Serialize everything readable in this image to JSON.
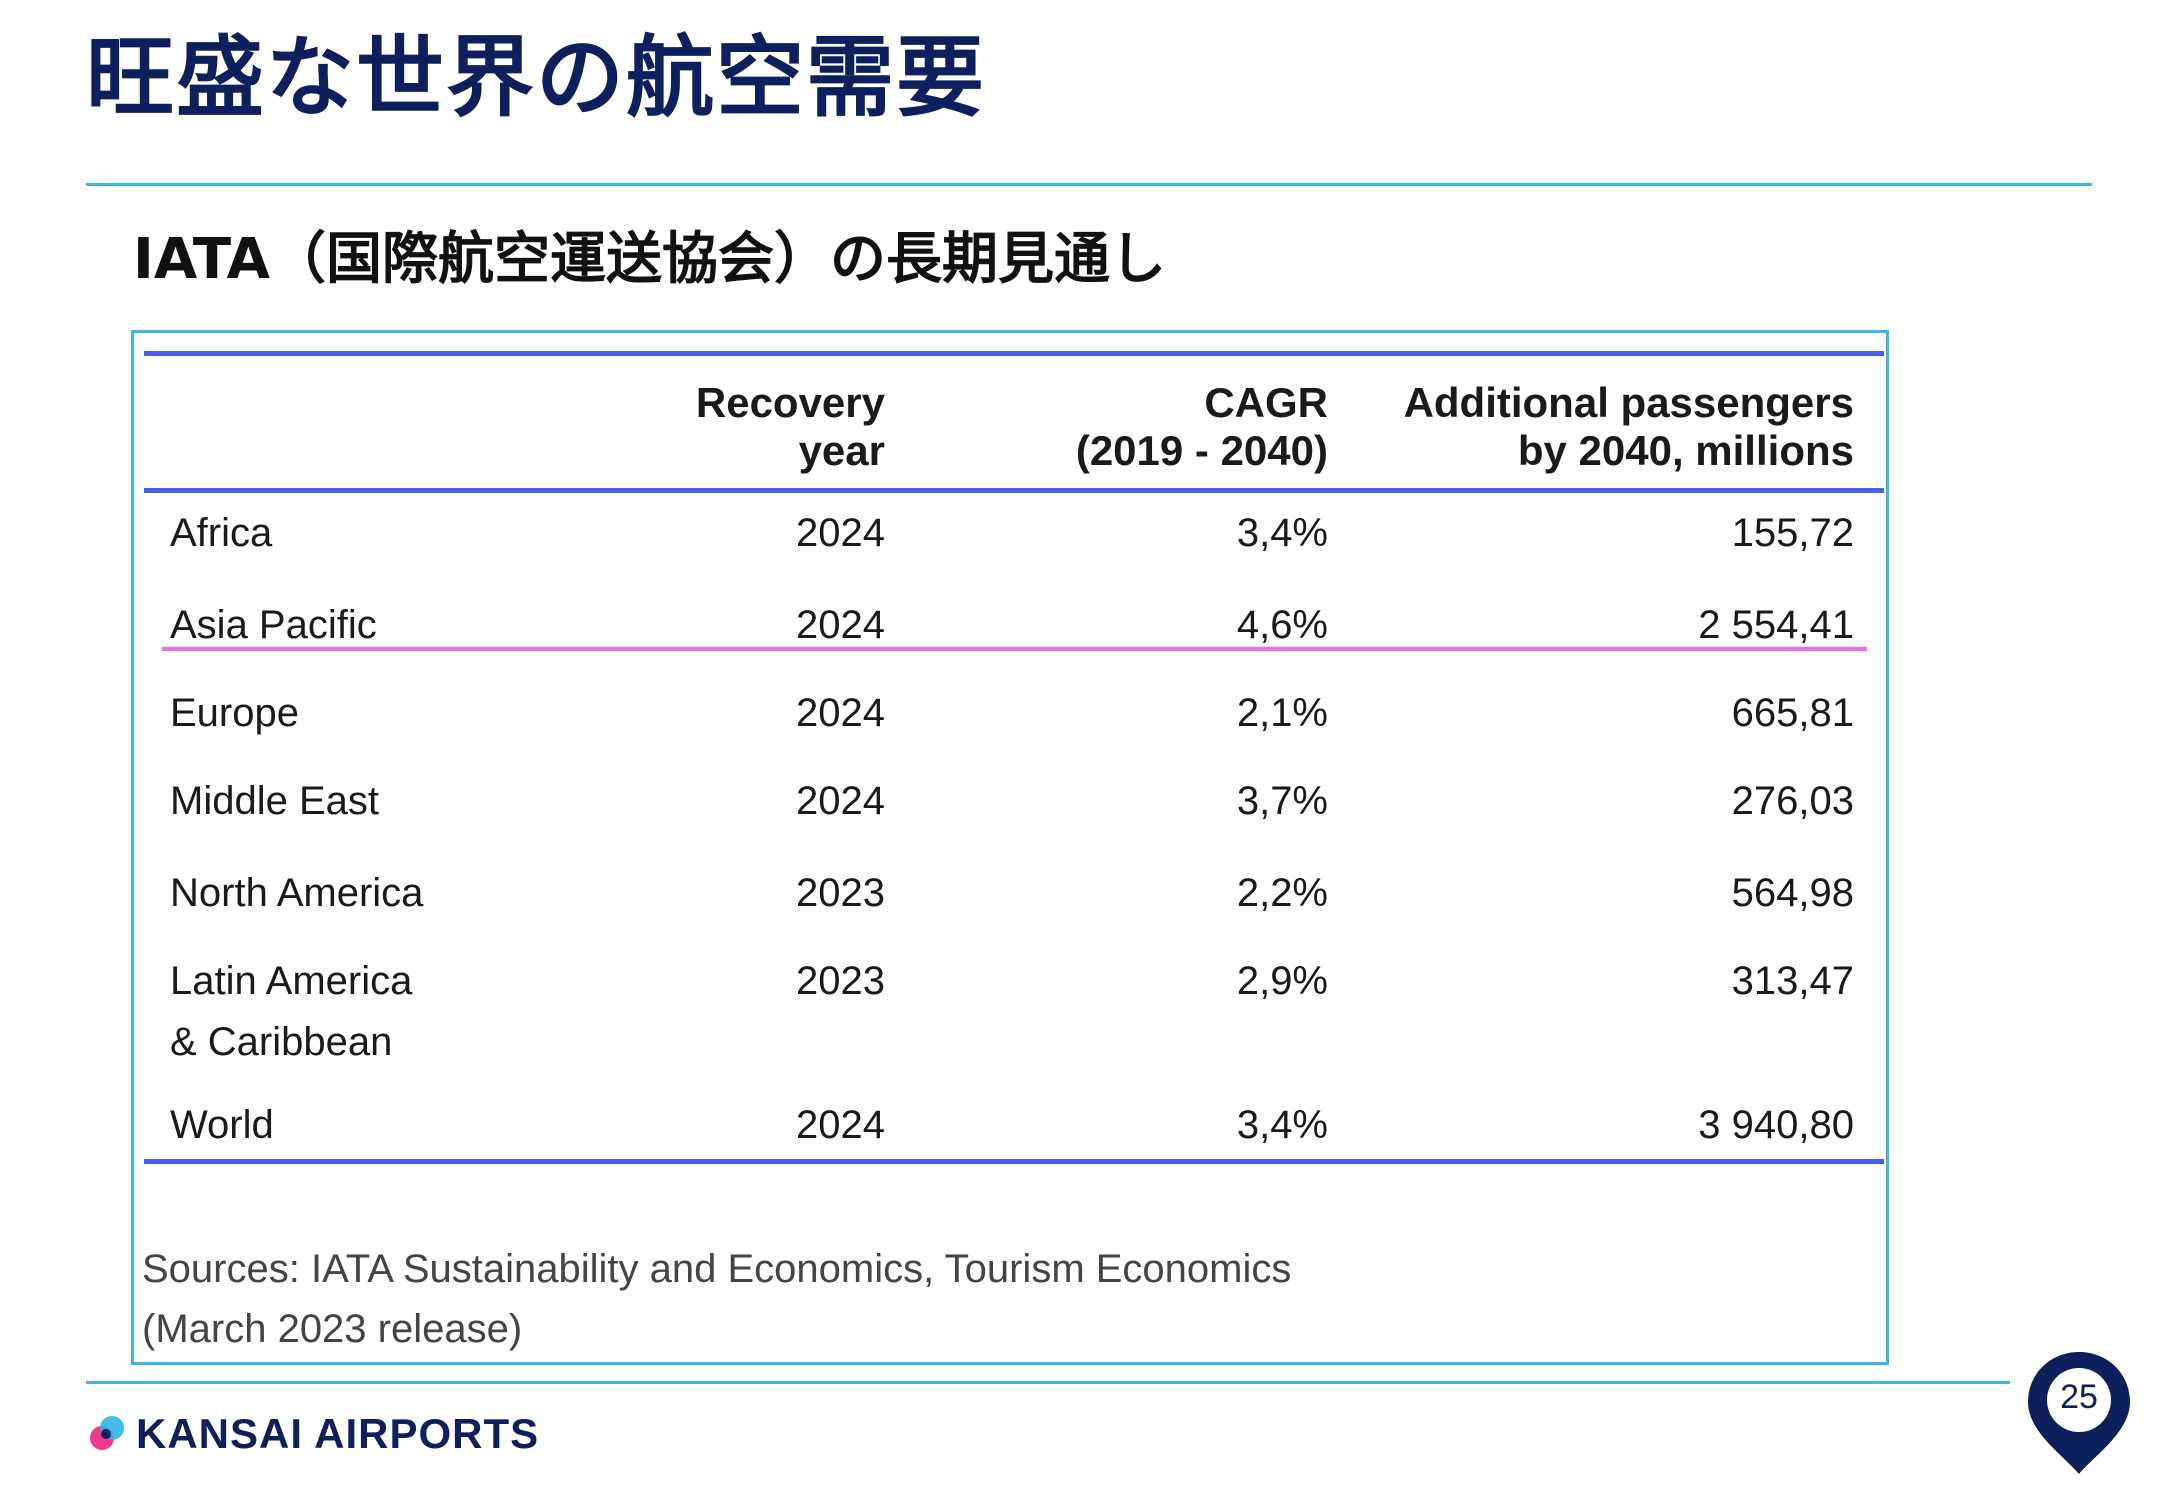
{
  "slide": {
    "title": "旺盛な世界の航空需要",
    "subtitle": "IATA（国際航空運送協会）の長期見通し",
    "page_number": "25"
  },
  "table": {
    "headers": {
      "region": "",
      "recovery_line1": "Recovery",
      "recovery_line2": "year",
      "cagr_line1": "CAGR",
      "cagr_line2": "(2019 - 2040)",
      "passengers_line1": "Additional passengers",
      "passengers_line2": "by 2040, millions"
    },
    "rows": [
      {
        "region": "Africa",
        "year": "2024",
        "cagr": "3,4%",
        "passengers": "155,72"
      },
      {
        "region": "Asia Pacific",
        "year": "2024",
        "cagr": "4,6%",
        "passengers": "2 554,41"
      },
      {
        "region": "Europe",
        "year": "2024",
        "cagr": "2,1%",
        "passengers": "665,81"
      },
      {
        "region": "Middle East",
        "year": "2024",
        "cagr": "3,7%",
        "passengers": "276,03"
      },
      {
        "region": "North America",
        "year": "2023",
        "cagr": "2,2%",
        "passengers": "564,98"
      },
      {
        "region": "Latin America",
        "region_line2": "& Caribbean",
        "year": "2023",
        "cagr": "2,9%",
        "passengers": "313,47"
      },
      {
        "region": "World",
        "year": "2024",
        "cagr": "3,4%",
        "passengers": "3 940,80"
      }
    ],
    "source_line1": "Sources: IATA Sustainability and Economics, Tourism Economics",
    "source_line2": "(March 2023 release)"
  },
  "footer": {
    "logo_text": "KANSAI AIRPORTS"
  },
  "colors": {
    "title": "#0d1f5c",
    "accent_rule": "#3fb4e6",
    "table_rule": "#4a5ee8",
    "highlight_rule": "#f56ae8"
  },
  "icons": {
    "logo": "kansai-airports-logo-icon",
    "page_marker": "location-pin-icon"
  }
}
